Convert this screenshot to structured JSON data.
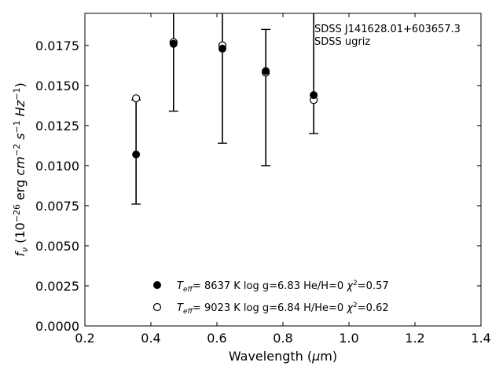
{
  "chart_data": {
    "type": "scatter",
    "annotation": [
      "SDSS J141628.01+603657.3",
      "SDSS ugriz"
    ],
    "xlabel": "Wavelength (μm)",
    "ylabel": "f_ν (10^-26 erg cm^-2 s^-1 Hz^-1)",
    "xlim": [
      0.2,
      1.4
    ],
    "ylim": [
      0.0,
      0.0195
    ],
    "xticks": [
      "0.2",
      "0.4",
      "0.6",
      "0.8",
      "1.0",
      "1.2",
      "1.4"
    ],
    "yticks": [
      "0.0000",
      "0.0025",
      "0.0050",
      "0.0075",
      "0.0100",
      "0.0125",
      "0.0150",
      "0.0175"
    ],
    "grid": false,
    "legend_position": "bottom-center",
    "observed": {
      "x": [
        0.3551,
        0.4686,
        0.6166,
        0.748,
        0.8932
      ],
      "y": [
        0.0107,
        0.0176,
        0.0173,
        0.0159,
        0.0144
      ],
      "yerr_low": [
        0.0076,
        0.0134,
        0.0114,
        0.01,
        0.012
      ],
      "yerr_high": [
        0.0141,
        0.022,
        0.0232,
        0.0185,
        0.022
      ]
    },
    "series": [
      {
        "name": "Teff= 8637 K log g=6.83 He/H=0 χ²=0.57",
        "marker": "filled-circle",
        "x": [
          0.3551,
          0.4686,
          0.6166,
          0.748,
          0.8932
        ],
        "y": [
          0.0107,
          0.0176,
          0.0173,
          0.0159,
          0.0144
        ]
      },
      {
        "name": "Teff= 9023 K log g=6.84 H/He=0 χ²=0.62",
        "marker": "open-circle",
        "x": [
          0.3551,
          0.4686,
          0.6166,
          0.748,
          0.8932
        ],
        "y": [
          0.0142,
          0.0177,
          0.0175,
          0.0158,
          0.0141
        ]
      }
    ],
    "legend": [
      {
        "marker": "filled-circle",
        "temp": "8637 K",
        "logg": "log g=6.83",
        "comp": "He/H=0",
        "chi": "=0.57"
      },
      {
        "marker": "open-circle",
        "temp": "9023 K",
        "logg": "log g=6.84",
        "comp": "H/He=0",
        "chi": "=0.62"
      }
    ]
  }
}
